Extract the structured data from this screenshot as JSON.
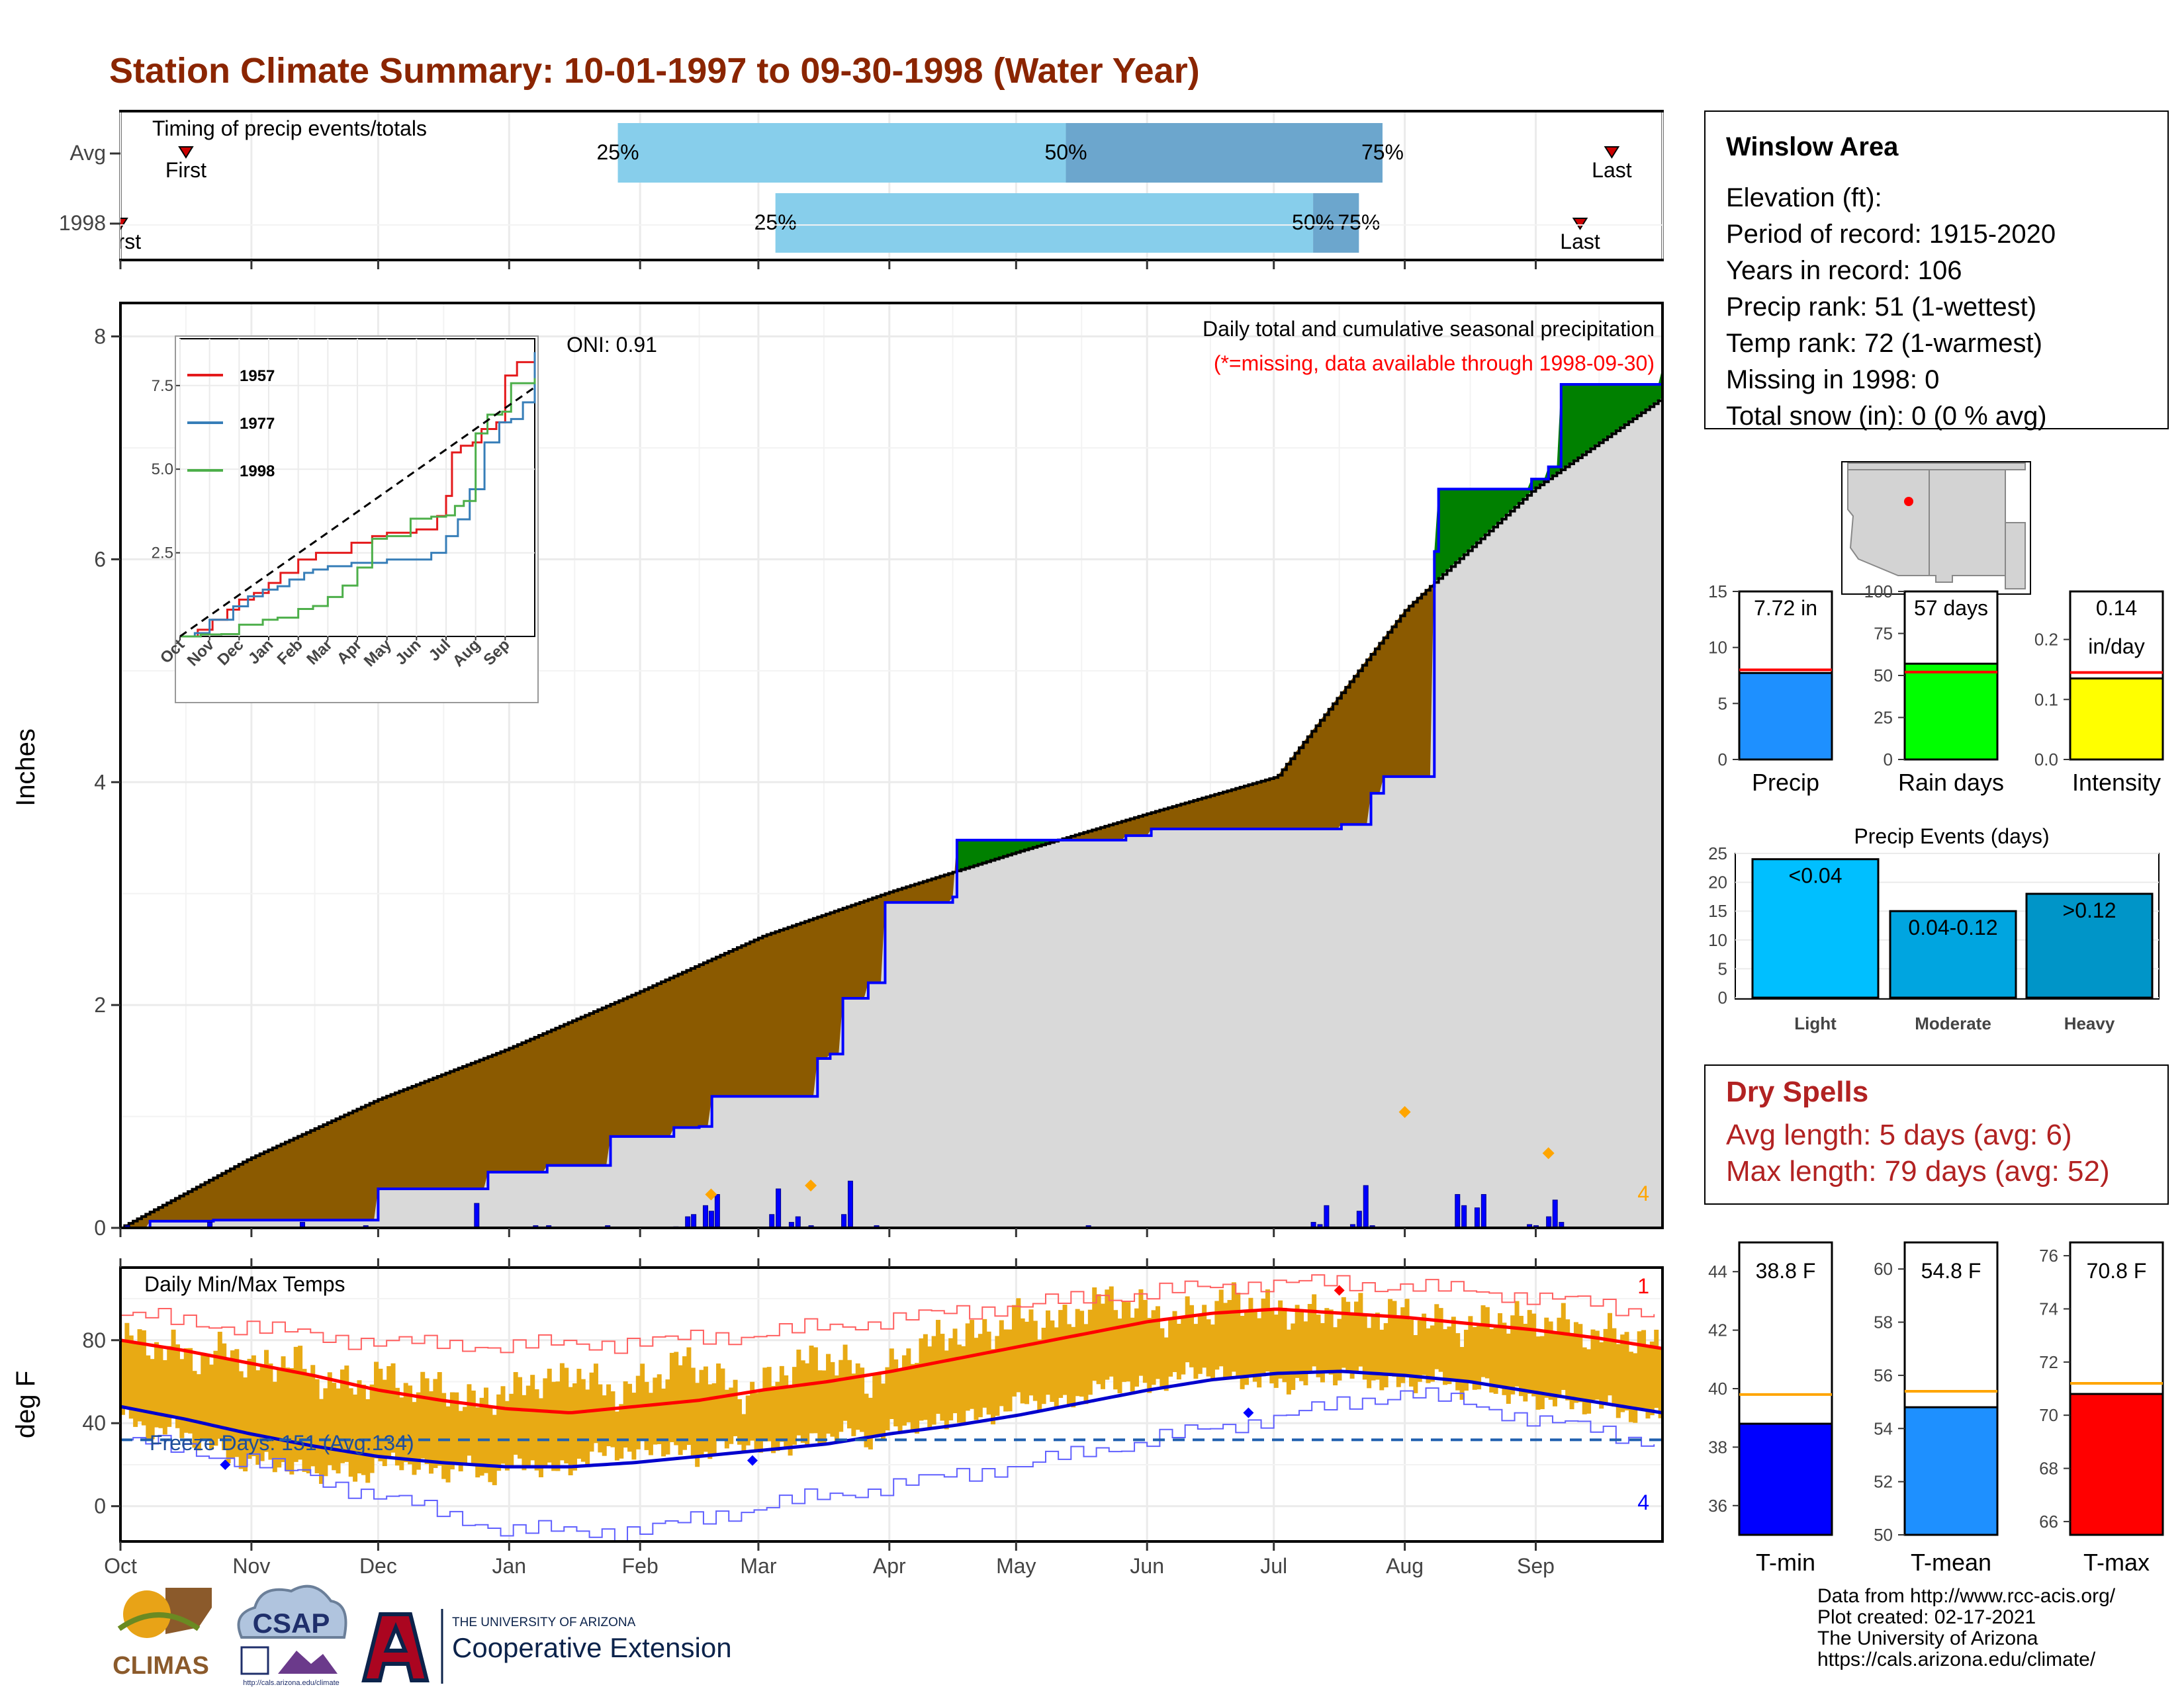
{
  "title": "Station Climate Summary: 10-01-1997 to 09-30-1998 (Water Year)",
  "colors": {
    "title": "#8B2500",
    "brown": "#8B5A00",
    "green": "#008000",
    "blue": "#0000FF",
    "light": "#D9D9D9",
    "timing_light": "#87CEEB",
    "timing_dark": "#6CA6CD",
    "orange": "#FFA500",
    "temp_bar": "#E8AA14",
    "red": "#FF0000",
    "dark_red": "#B22222"
  },
  "timing": {
    "title": "Timing of precip events/totals",
    "rows": [
      {
        "label": "Avg",
        "first_label": "First",
        "last_label": "Last",
        "first_month": 0.5,
        "p25": 3.83,
        "p50": 7.38,
        "p75": 9.83,
        "last_month": 11.6,
        "p25_label": "25%",
        "p50_label": "50%",
        "p75_label": "75%"
      },
      {
        "label": "1998",
        "first_label": "First",
        "last_label": "Last",
        "first_month": 0.0,
        "p25": 5.13,
        "p50": 9.3,
        "p75": 9.65,
        "last_month": 11.35,
        "p25_label": "25%",
        "p50_label": "50%",
        "p75_label": "75%"
      }
    ]
  },
  "precip_panel": {
    "ylabel": "Inches",
    "yticks": [
      0,
      2,
      4,
      6,
      8
    ],
    "ylim": [
      0,
      8.3
    ],
    "subtitle": "Daily total and cumulative seasonal precipitation",
    "missing_note": "(*=missing, data available through 1998-09-30)",
    "oni": "ONI: 0.91",
    "count_label": "4",
    "avg_cumulative": {
      "months": [
        0,
        1,
        2,
        3,
        4,
        5,
        6,
        7,
        8,
        9,
        10,
        11,
        12
      ],
      "values": [
        0,
        0.62,
        1.15,
        1.6,
        2.1,
        2.62,
        3.02,
        3.38,
        3.72,
        4.05,
        5.55,
        6.63,
        7.45
      ]
    },
    "obs_cumulative": {
      "months": [
        0,
        0.18,
        0.2,
        0.7,
        0.72,
        1.35,
        2.0,
        2.85,
        3.3,
        3.8,
        4.3,
        4.5,
        4.6,
        5.4,
        5.5,
        5.6,
        5.8,
        5.95,
        6.45,
        6.5,
        7.8,
        7.85,
        8.0,
        8.8,
        9.3,
        9.5,
        9.55,
        9.7,
        9.8,
        10.2,
        10.25,
        10.95,
        11.1,
        11.2,
        12
      ],
      "values": [
        0,
        0,
        0.06,
        0.06,
        0.07,
        0.07,
        0.35,
        0.5,
        0.56,
        0.82,
        0.9,
        0.91,
        1.18,
        1.52,
        1.56,
        2.06,
        2.2,
        2.92,
        2.97,
        3.48,
        3.52,
        3.52,
        3.58,
        3.58,
        3.58,
        3.62,
        3.62,
        3.9,
        4.05,
        6.07,
        6.63,
        6.72,
        6.83,
        7.57,
        7.72
      ]
    },
    "daily_bars": {
      "months": [
        0.05,
        0.68,
        1.4,
        1.9,
        2.75,
        3.2,
        3.3,
        3.75,
        4.3,
        4.4,
        4.45,
        4.55,
        4.6,
        4.65,
        5.1,
        5.15,
        5.25,
        5.3,
        5.4,
        5.65,
        5.7,
        5.9,
        7.55,
        9.3,
        9.35,
        9.4,
        9.6,
        9.65,
        9.7,
        9.75,
        10.4,
        10.45,
        10.55,
        10.6,
        10.95,
        11.0,
        11.1,
        11.15,
        11.2
      ],
      "values": [
        0.02,
        0.05,
        0.05,
        0.02,
        0.22,
        0.02,
        0.02,
        0.02,
        0.01,
        0.1,
        0.12,
        0.2,
        0.15,
        0.3,
        0.12,
        0.35,
        0.05,
        0.1,
        0.02,
        0.12,
        0.42,
        0.02,
        0.02,
        0.05,
        0.03,
        0.2,
        0.03,
        0.15,
        0.38,
        0.02,
        0.3,
        0.2,
        0.18,
        0.3,
        0.03,
        0.02,
        0.1,
        0.25,
        0.05
      ]
    },
    "event_marks": {
      "months": [
        4.6,
        5.4,
        10.0,
        11.1
      ],
      "values": [
        0.3,
        0.38,
        1.04,
        0.67
      ]
    }
  },
  "inset": {
    "months": [
      "Oct",
      "Nov",
      "Dec",
      "Jan",
      "Feb",
      "Mar",
      "Apr",
      "May",
      "Jun",
      "Jul",
      "Aug",
      "Sep"
    ],
    "yticks": [
      2.5,
      5.0,
      7.5
    ],
    "series": [
      {
        "name": "1957",
        "color": "#E41A1C",
        "months": [
          0,
          0.6,
          1.1,
          1.6,
          2.0,
          2.5,
          3.0,
          3.4,
          4.0,
          4.6,
          5.3,
          5.8,
          6.5,
          7.0,
          8.0,
          8.7,
          9.0,
          9.2,
          9.5,
          9.9,
          10.2,
          10.7,
          11.0,
          11.4,
          12
        ],
        "values": [
          0,
          0.2,
          0.5,
          0.8,
          1.1,
          1.3,
          1.6,
          1.9,
          2.3,
          2.5,
          2.5,
          2.8,
          3.0,
          3.1,
          3.2,
          3.6,
          4.2,
          5.5,
          5.7,
          5.8,
          6.2,
          6.4,
          7.8,
          8.2,
          8.2
        ]
      },
      {
        "name": "1977",
        "color": "#377EB8",
        "months": [
          0,
          0.5,
          1.0,
          1.8,
          2.3,
          2.8,
          3.3,
          3.7,
          4.2,
          4.5,
          5.0,
          5.8,
          6.5,
          7.0,
          7.8,
          8.5,
          9.0,
          9.4,
          9.8,
          10.3,
          10.8,
          11.2,
          11.6,
          12
        ],
        "values": [
          0,
          0.1,
          0.5,
          0.9,
          1.2,
          1.4,
          1.5,
          1.7,
          1.9,
          2.0,
          2.1,
          2.2,
          2.2,
          2.3,
          2.3,
          2.5,
          3.0,
          3.5,
          4.4,
          5.8,
          6.4,
          6.5,
          7.0,
          8.5
        ]
      },
      {
        "name": "1998",
        "color": "#4DAF4A",
        "months": [
          0,
          0.7,
          1.4,
          2.0,
          2.8,
          3.3,
          4.0,
          4.5,
          5.0,
          5.5,
          6.0,
          6.5,
          7.0,
          7.8,
          8.5,
          9.0,
          9.3,
          9.6,
          10.0,
          10.4,
          10.9,
          11.2,
          12
        ],
        "values": [
          0,
          0.06,
          0.07,
          0.35,
          0.5,
          0.56,
          0.82,
          0.91,
          1.18,
          1.52,
          2.06,
          2.92,
          3.0,
          3.52,
          3.58,
          3.62,
          3.9,
          4.05,
          6.07,
          6.63,
          6.72,
          7.57,
          7.72
        ]
      }
    ],
    "avg_line": {
      "months": [
        0,
        12
      ],
      "values": [
        0,
        7.45
      ]
    }
  },
  "temp_panel": {
    "ylabel": "deg F",
    "title": "Daily Min/Max Temps",
    "yticks": [
      0,
      40,
      80
    ],
    "ylim": [
      -17,
      115
    ],
    "freeze_note": "Freeze Days: 151 (Avg:134)",
    "top_count": "1",
    "bottom_count": "4",
    "freeze_line": 32,
    "avg_max": {
      "months": [
        0,
        0.5,
        1,
        1.5,
        2,
        2.5,
        3,
        3.5,
        4,
        4.5,
        5,
        5.5,
        6,
        6.5,
        7,
        7.5,
        8,
        8.5,
        9,
        9.5,
        10,
        10.5,
        11,
        11.5,
        12
      ],
      "values": [
        80,
        75,
        69,
        63,
        56,
        51,
        47,
        45,
        48,
        51,
        56,
        60,
        65,
        71,
        77,
        83,
        89,
        93,
        95,
        93,
        91,
        88,
        85,
        81,
        76
      ]
    },
    "avg_min": {
      "months": [
        0,
        0.5,
        1,
        1.5,
        2,
        2.5,
        3,
        3.5,
        4,
        4.5,
        5,
        5.5,
        6,
        6.5,
        7,
        7.5,
        8,
        8.5,
        9,
        9.5,
        10,
        10.5,
        11,
        11.5,
        12
      ],
      "values": [
        48,
        42,
        35,
        29,
        24,
        21,
        19,
        19,
        21,
        24,
        27,
        30,
        35,
        39,
        44,
        50,
        56,
        61,
        64,
        65,
        63,
        60,
        55,
        50,
        45
      ]
    },
    "rec_max": {
      "months": [
        0,
        1,
        2,
        3,
        4,
        5,
        6,
        7,
        8,
        9,
        10,
        11,
        12
      ],
      "values": [
        92,
        86,
        79,
        77,
        79,
        83,
        90,
        97,
        103,
        108,
        106,
        101,
        93
      ]
    },
    "rec_min": {
      "months": [
        0,
        1,
        2,
        3,
        4,
        5,
        6,
        7,
        8,
        9,
        10,
        11,
        12
      ],
      "values": [
        32,
        22,
        5,
        -12,
        -12,
        0,
        10,
        20,
        32,
        43,
        55,
        42,
        30
      ]
    },
    "bars": {
      "start": 0,
      "count": 73,
      "max": [
        80,
        80,
        76,
        74,
        70,
        78,
        66,
        68,
        72,
        62,
        60,
        58,
        64,
        60,
        56,
        60,
        48,
        54,
        52,
        62,
        58,
        66,
        60,
        54,
        58,
        62,
        70,
        68,
        60,
        54,
        58,
        66,
        70,
        72,
        68,
        60,
        66,
        76,
        80,
        84,
        82,
        86,
        92,
        90,
        88,
        96,
        100,
        98,
        94,
        90,
        92,
        96,
        100,
        98,
        94,
        94,
        92,
        96,
        94,
        92,
        94,
        90,
        88,
        86,
        90,
        92,
        88,
        90,
        86,
        82,
        84,
        80,
        76
      ],
      "min": [
        44,
        36,
        38,
        34,
        30,
        24,
        20,
        22,
        18,
        16,
        18,
        14,
        20,
        22,
        18,
        16,
        20,
        14,
        18,
        22,
        16,
        20,
        24,
        28,
        24,
        30,
        26,
        24,
        28,
        32,
        26,
        30,
        30,
        34,
        36,
        32,
        36,
        40,
        38,
        44,
        42,
        46,
        50,
        52,
        48,
        54,
        58,
        60,
        56,
        62,
        64,
        66,
        60,
        62,
        58,
        60,
        62,
        64,
        62,
        60,
        58,
        62,
        60,
        56,
        58,
        54,
        50,
        52,
        48,
        50,
        46,
        44,
        42
      ]
    },
    "marks": [
      {
        "month": 0.8,
        "value": 20,
        "color": "#0000FF"
      },
      {
        "month": 4.95,
        "value": 22,
        "color": "#0000FF"
      },
      {
        "month": 8.8,
        "value": 45,
        "color": "#0000FF"
      },
      {
        "month": 9.5,
        "value": 104,
        "color": "#FF0000"
      }
    ]
  },
  "xaxis": {
    "labels": [
      "Oct",
      "Nov",
      "Dec",
      "Jan",
      "Feb",
      "Mar",
      "Apr",
      "May",
      "Jun",
      "Jul",
      "Aug",
      "Sep"
    ],
    "month_days": [
      31,
      30,
      31,
      31,
      28,
      31,
      30,
      31,
      30,
      31,
      31,
      30
    ]
  },
  "station": {
    "name": "Winslow Area",
    "lines": [
      "Elevation (ft):",
      "Period of record: 1915-2020",
      "Years in record: 106",
      "Precip rank: 51 (1-wettest)",
      "Temp rank: 72 (1-warmest)",
      "Missing in 1998: 0",
      "Total snow (in): 0 (0 % avg)"
    ]
  },
  "minis_precip": [
    {
      "label": "Precip",
      "value_label": "7.72 in",
      "value": 7.72,
      "avg": 8.0,
      "ymax": 15,
      "yticks": [
        0,
        5,
        10,
        15
      ],
      "color": "#1E90FF"
    },
    {
      "label": "Rain days",
      "value_label": "57 days",
      "value": 57,
      "avg": 52,
      "ymax": 100,
      "yticks": [
        0,
        25,
        50,
        75,
        100
      ],
      "color": "#00FF00"
    },
    {
      "label": "Intensity",
      "value_label": "0.14",
      "value_label2": "in/day",
      "value": 0.135,
      "avg": 0.145,
      "ymax": 0.28,
      "yticks": [
        0.0,
        0.1,
        0.2
      ],
      "ytick_labels": [
        "0.0",
        "0.1",
        "0.2"
      ],
      "color": "#FFFF00"
    }
  ],
  "events": {
    "title": "Precip Events (days)",
    "yticks": [
      0,
      5,
      10,
      15,
      20,
      25
    ],
    "bars": [
      {
        "label": "Light",
        "name": "<0.04",
        "value": 24,
        "color": "#00BFFF"
      },
      {
        "label": "Moderate",
        "name": "0.04-0.12",
        "value": 15,
        "color": "#00A5E0"
      },
      {
        "label": "Heavy",
        "name": ">0.12",
        "value": 18,
        "color": "#0095C8"
      }
    ]
  },
  "dry_spells": {
    "title": "Dry Spells",
    "avg": "Avg length: 5 days (avg: 6)",
    "max": "Max length: 79 days (avg: 52)"
  },
  "minis_temp": [
    {
      "label": "T-min",
      "value_label": "38.8 F",
      "value": 38.8,
      "avg": 39.8,
      "ymin": 35,
      "ymax": 45,
      "yticks": [
        36,
        38,
        40,
        42,
        44
      ],
      "color": "#0000FF"
    },
    {
      "label": "T-mean",
      "value_label": "54.8 F",
      "value": 54.8,
      "avg": 55.4,
      "ymin": 50,
      "ymax": 61,
      "yticks": [
        50,
        52,
        54,
        56,
        58,
        60
      ],
      "color": "#1E90FF"
    },
    {
      "label": "T-max",
      "value_label": "70.8 F",
      "value": 70.8,
      "avg": 71.2,
      "ymin": 65.5,
      "ymax": 76.5,
      "yticks": [
        66,
        68,
        70,
        72,
        74,
        76
      ],
      "color": "#FF0000"
    }
  ],
  "footer": {
    "credits": [
      "Data from http://www.rcc-acis.org/",
      "Plot created: 02-17-2021",
      "The University of Arizona",
      "https://cals.arizona.edu/climate/"
    ],
    "climas": "CLIMAS",
    "csap": "CSAP",
    "csap_url": "http://cals.arizona.edu/climate",
    "ua_small": "THE UNIVERSITY OF ARIZONA",
    "ua_big": "Cooperative Extension"
  }
}
